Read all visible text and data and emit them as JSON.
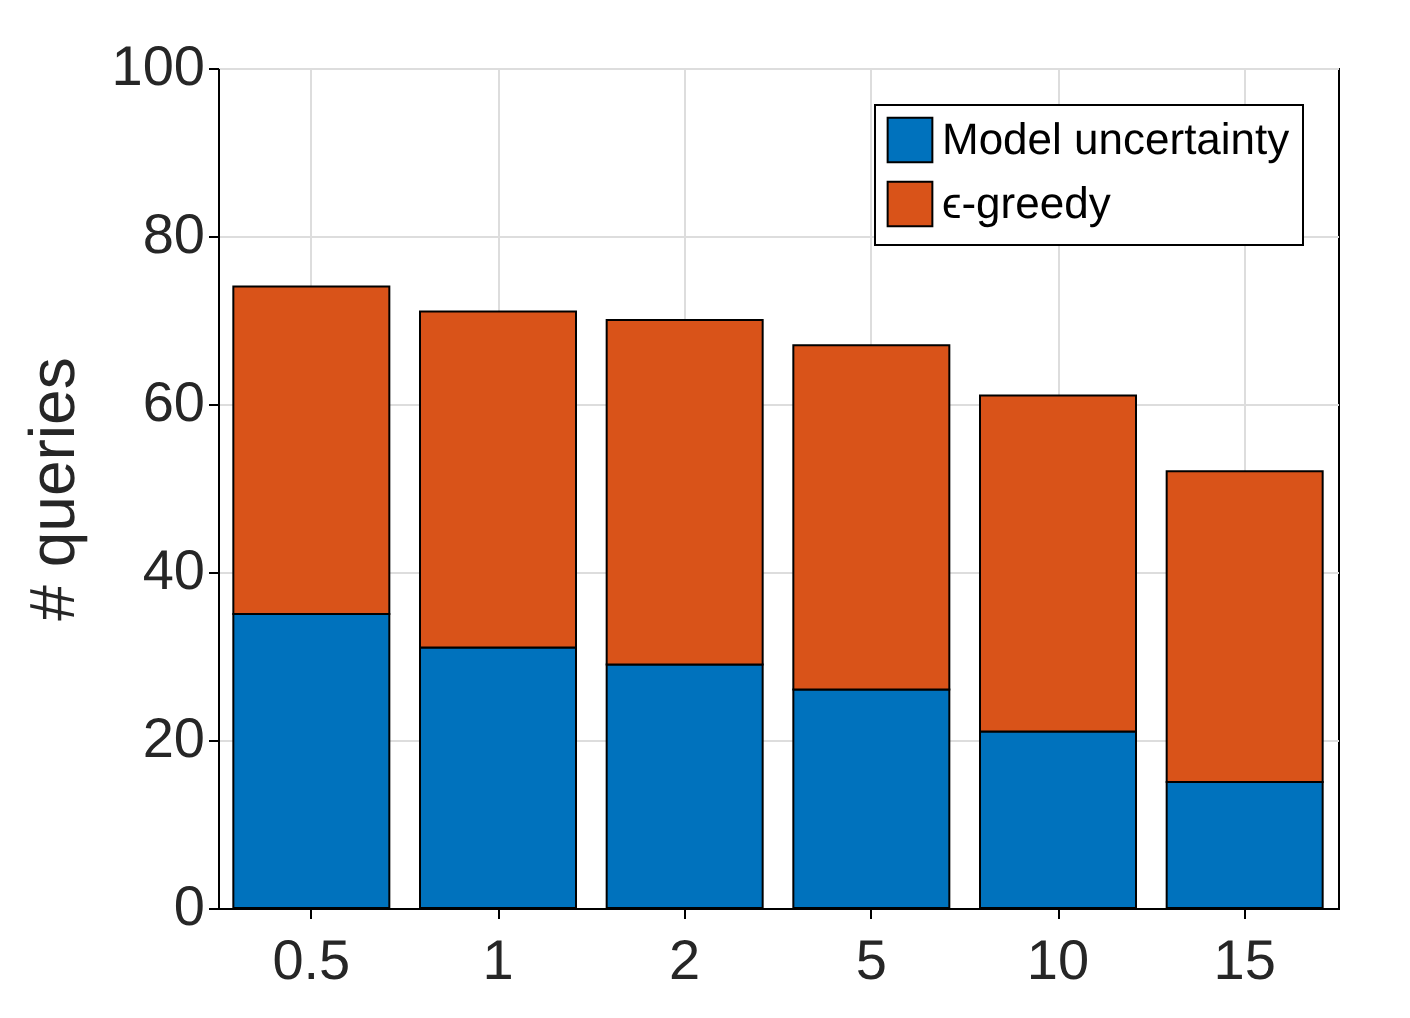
{
  "chart_data": {
    "type": "bar",
    "ylabel": "# queries",
    "categories": [
      "0.5",
      "1",
      "2",
      "5",
      "10",
      "15"
    ],
    "series": [
      {
        "name": "Model uncertainty",
        "color": "#0072bd",
        "values": [
          35,
          31,
          29,
          26,
          21,
          15
        ]
      },
      {
        "name": "ϵ-greedy",
        "color": "#d95319",
        "values": [
          39,
          40,
          41,
          41,
          40,
          37
        ]
      }
    ],
    "stacked": true,
    "ylim": [
      0,
      100
    ],
    "yticks": [
      0,
      20,
      40,
      60,
      80,
      100
    ],
    "grid": true,
    "legend": "top right"
  }
}
